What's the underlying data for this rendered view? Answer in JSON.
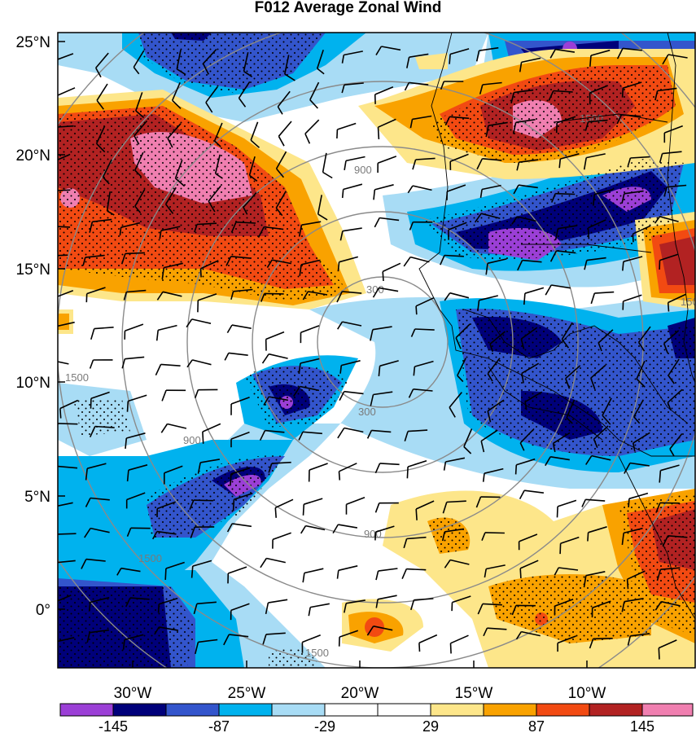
{
  "title": "F012 Average Zonal Wind",
  "map": {
    "lat_ticks": [
      {
        "lat": 25,
        "label": "25°N"
      },
      {
        "lat": 20,
        "label": "20°N"
      },
      {
        "lat": 15,
        "label": "15°N"
      },
      {
        "lat": 10,
        "label": "10°N"
      },
      {
        "lat": 5,
        "label": "5°N"
      },
      {
        "lat": 0,
        "label": "0°"
      }
    ],
    "lon_ticks": [
      {
        "lon": -30,
        "label": "30°W"
      },
      {
        "lon": -25,
        "label": "25°W"
      },
      {
        "lon": -20,
        "label": "20°W"
      },
      {
        "lon": -15,
        "label": "15°W"
      },
      {
        "lon": -10,
        "label": "10°W"
      }
    ],
    "lat_range": [
      -2.5,
      25.5
    ],
    "lon_range": [
      -32.5,
      -4.5
    ],
    "range_ring_labels": [
      "300",
      "300",
      "900",
      "900",
      "900",
      "1500",
      "1500",
      "1500",
      "1500",
      "1500"
    ]
  },
  "colorbar": {
    "colors": [
      "#9b3fd6",
      "#00007a",
      "#3355cc",
      "#00b2ee",
      "#a8dcf5",
      "#ffffff",
      "#ffffff",
      "#fde68a",
      "#f9a200",
      "#f24a12",
      "#b22222",
      "#f07fb0"
    ],
    "labels": [
      "-145",
      "-87",
      "-29",
      "29",
      "87",
      "145"
    ]
  }
}
